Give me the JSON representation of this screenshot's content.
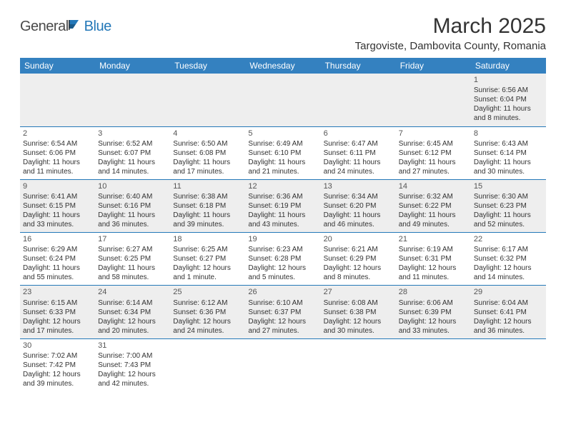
{
  "logo": {
    "general": "General",
    "blue": "Blue"
  },
  "title": "March 2025",
  "location": "Targoviste, Dambovita County, Romania",
  "colors": {
    "header_bg": "#3481c0",
    "header_text": "#ffffff",
    "row_alt_bg": "#eeeeee",
    "row_bg": "#ffffff",
    "border": "#2478b8",
    "text": "#333333",
    "logo_blue": "#2478b8",
    "logo_gray": "#4a4a4a"
  },
  "weekdays": [
    "Sunday",
    "Monday",
    "Tuesday",
    "Wednesday",
    "Thursday",
    "Friday",
    "Saturday"
  ],
  "weeks": [
    [
      null,
      null,
      null,
      null,
      null,
      null,
      {
        "n": "1",
        "sr": "Sunrise: 6:56 AM",
        "ss": "Sunset: 6:04 PM",
        "d1": "Daylight: 11 hours",
        "d2": "and 8 minutes."
      }
    ],
    [
      {
        "n": "2",
        "sr": "Sunrise: 6:54 AM",
        "ss": "Sunset: 6:06 PM",
        "d1": "Daylight: 11 hours",
        "d2": "and 11 minutes."
      },
      {
        "n": "3",
        "sr": "Sunrise: 6:52 AM",
        "ss": "Sunset: 6:07 PM",
        "d1": "Daylight: 11 hours",
        "d2": "and 14 minutes."
      },
      {
        "n": "4",
        "sr": "Sunrise: 6:50 AM",
        "ss": "Sunset: 6:08 PM",
        "d1": "Daylight: 11 hours",
        "d2": "and 17 minutes."
      },
      {
        "n": "5",
        "sr": "Sunrise: 6:49 AM",
        "ss": "Sunset: 6:10 PM",
        "d1": "Daylight: 11 hours",
        "d2": "and 21 minutes."
      },
      {
        "n": "6",
        "sr": "Sunrise: 6:47 AM",
        "ss": "Sunset: 6:11 PM",
        "d1": "Daylight: 11 hours",
        "d2": "and 24 minutes."
      },
      {
        "n": "7",
        "sr": "Sunrise: 6:45 AM",
        "ss": "Sunset: 6:12 PM",
        "d1": "Daylight: 11 hours",
        "d2": "and 27 minutes."
      },
      {
        "n": "8",
        "sr": "Sunrise: 6:43 AM",
        "ss": "Sunset: 6:14 PM",
        "d1": "Daylight: 11 hours",
        "d2": "and 30 minutes."
      }
    ],
    [
      {
        "n": "9",
        "sr": "Sunrise: 6:41 AM",
        "ss": "Sunset: 6:15 PM",
        "d1": "Daylight: 11 hours",
        "d2": "and 33 minutes."
      },
      {
        "n": "10",
        "sr": "Sunrise: 6:40 AM",
        "ss": "Sunset: 6:16 PM",
        "d1": "Daylight: 11 hours",
        "d2": "and 36 minutes."
      },
      {
        "n": "11",
        "sr": "Sunrise: 6:38 AM",
        "ss": "Sunset: 6:18 PM",
        "d1": "Daylight: 11 hours",
        "d2": "and 39 minutes."
      },
      {
        "n": "12",
        "sr": "Sunrise: 6:36 AM",
        "ss": "Sunset: 6:19 PM",
        "d1": "Daylight: 11 hours",
        "d2": "and 43 minutes."
      },
      {
        "n": "13",
        "sr": "Sunrise: 6:34 AM",
        "ss": "Sunset: 6:20 PM",
        "d1": "Daylight: 11 hours",
        "d2": "and 46 minutes."
      },
      {
        "n": "14",
        "sr": "Sunrise: 6:32 AM",
        "ss": "Sunset: 6:22 PM",
        "d1": "Daylight: 11 hours",
        "d2": "and 49 minutes."
      },
      {
        "n": "15",
        "sr": "Sunrise: 6:30 AM",
        "ss": "Sunset: 6:23 PM",
        "d1": "Daylight: 11 hours",
        "d2": "and 52 minutes."
      }
    ],
    [
      {
        "n": "16",
        "sr": "Sunrise: 6:29 AM",
        "ss": "Sunset: 6:24 PM",
        "d1": "Daylight: 11 hours",
        "d2": "and 55 minutes."
      },
      {
        "n": "17",
        "sr": "Sunrise: 6:27 AM",
        "ss": "Sunset: 6:25 PM",
        "d1": "Daylight: 11 hours",
        "d2": "and 58 minutes."
      },
      {
        "n": "18",
        "sr": "Sunrise: 6:25 AM",
        "ss": "Sunset: 6:27 PM",
        "d1": "Daylight: 12 hours",
        "d2": "and 1 minute."
      },
      {
        "n": "19",
        "sr": "Sunrise: 6:23 AM",
        "ss": "Sunset: 6:28 PM",
        "d1": "Daylight: 12 hours",
        "d2": "and 5 minutes."
      },
      {
        "n": "20",
        "sr": "Sunrise: 6:21 AM",
        "ss": "Sunset: 6:29 PM",
        "d1": "Daylight: 12 hours",
        "d2": "and 8 minutes."
      },
      {
        "n": "21",
        "sr": "Sunrise: 6:19 AM",
        "ss": "Sunset: 6:31 PM",
        "d1": "Daylight: 12 hours",
        "d2": "and 11 minutes."
      },
      {
        "n": "22",
        "sr": "Sunrise: 6:17 AM",
        "ss": "Sunset: 6:32 PM",
        "d1": "Daylight: 12 hours",
        "d2": "and 14 minutes."
      }
    ],
    [
      {
        "n": "23",
        "sr": "Sunrise: 6:15 AM",
        "ss": "Sunset: 6:33 PM",
        "d1": "Daylight: 12 hours",
        "d2": "and 17 minutes."
      },
      {
        "n": "24",
        "sr": "Sunrise: 6:14 AM",
        "ss": "Sunset: 6:34 PM",
        "d1": "Daylight: 12 hours",
        "d2": "and 20 minutes."
      },
      {
        "n": "25",
        "sr": "Sunrise: 6:12 AM",
        "ss": "Sunset: 6:36 PM",
        "d1": "Daylight: 12 hours",
        "d2": "and 24 minutes."
      },
      {
        "n": "26",
        "sr": "Sunrise: 6:10 AM",
        "ss": "Sunset: 6:37 PM",
        "d1": "Daylight: 12 hours",
        "d2": "and 27 minutes."
      },
      {
        "n": "27",
        "sr": "Sunrise: 6:08 AM",
        "ss": "Sunset: 6:38 PM",
        "d1": "Daylight: 12 hours",
        "d2": "and 30 minutes."
      },
      {
        "n": "28",
        "sr": "Sunrise: 6:06 AM",
        "ss": "Sunset: 6:39 PM",
        "d1": "Daylight: 12 hours",
        "d2": "and 33 minutes."
      },
      {
        "n": "29",
        "sr": "Sunrise: 6:04 AM",
        "ss": "Sunset: 6:41 PM",
        "d1": "Daylight: 12 hours",
        "d2": "and 36 minutes."
      }
    ],
    [
      {
        "n": "30",
        "sr": "Sunrise: 7:02 AM",
        "ss": "Sunset: 7:42 PM",
        "d1": "Daylight: 12 hours",
        "d2": "and 39 minutes."
      },
      {
        "n": "31",
        "sr": "Sunrise: 7:00 AM",
        "ss": "Sunset: 7:43 PM",
        "d1": "Daylight: 12 hours",
        "d2": "and 42 minutes."
      },
      null,
      null,
      null,
      null,
      null
    ]
  ]
}
